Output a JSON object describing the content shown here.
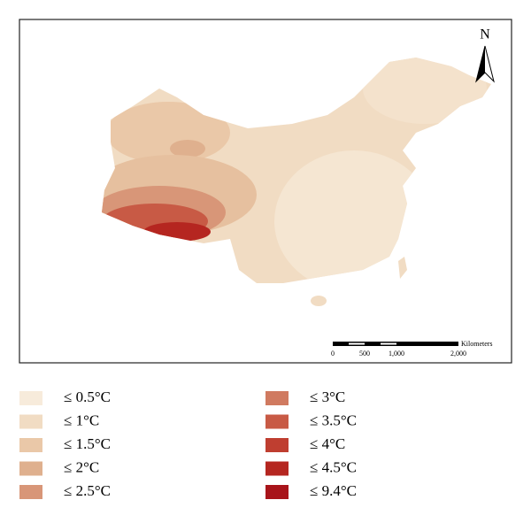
{
  "north_label": "N",
  "scale_bar": {
    "unit": "Kilometers",
    "ticks": [
      "0",
      "500",
      "1,000",
      "2,000"
    ]
  },
  "legend": {
    "items": [
      {
        "label": "≤ 0.5°C",
        "color": "#f7ebdb"
      },
      {
        "label": "≤ 1°C",
        "color": "#f1dcc3"
      },
      {
        "label": "≤ 1.5°C",
        "color": "#eac8a8"
      },
      {
        "label": "≤ 2°C",
        "color": "#dfb08e"
      },
      {
        "label": "≤ 2.5°C",
        "color": "#d89678"
      },
      {
        "label": "≤ 3°C",
        "color": "#d07a60"
      },
      {
        "label": "≤ 3.5°C",
        "color": "#c85a45"
      },
      {
        "label": "≤ 4°C",
        "color": "#bf3e30"
      },
      {
        "label": "≤ 4.5°C",
        "color": "#b52620"
      },
      {
        "label": "≤ 9.4°C",
        "color": "#a8141a"
      }
    ]
  }
}
